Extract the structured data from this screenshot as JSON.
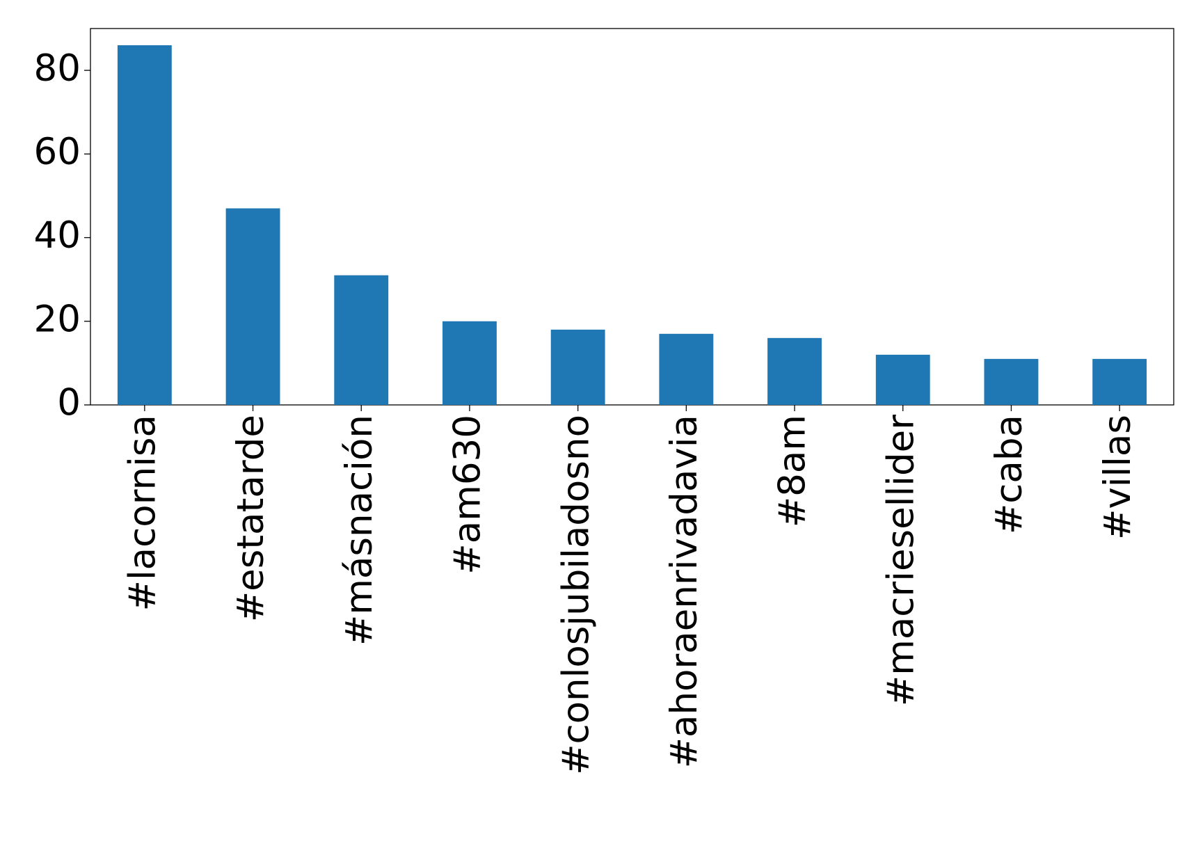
{
  "chart_data": {
    "type": "bar",
    "categories": [
      "#lacornisa",
      "#estatarde",
      "#másnación",
      "#am630",
      "#conlosjubiladosno",
      "#ahoraenrivadavia",
      "#8am",
      "#macriesellider",
      "#caba",
      "#villas"
    ],
    "values": [
      86,
      47,
      31,
      20,
      18,
      17,
      16,
      12,
      11,
      11
    ],
    "color": "#1f77b4",
    "ylim": [
      0,
      90
    ],
    "yticks": [
      0,
      20,
      40,
      60,
      80
    ],
    "grid": false
  }
}
